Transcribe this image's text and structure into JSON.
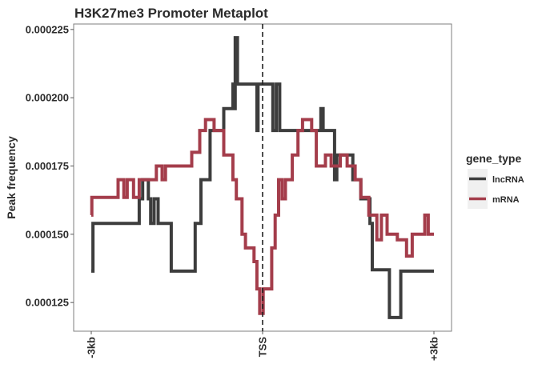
{
  "chart_data": {
    "type": "line",
    "title": "H3K27me3 Promoter Metaplot",
    "xlabel": "",
    "ylabel": "Peak frequency",
    "x_ticks": [
      "-3kb",
      "TSS",
      "+3kb"
    ],
    "x_range": [
      -3000,
      3000
    ],
    "y_ticks": [
      "0.000125",
      "0.000150",
      "0.000175",
      "0.000200",
      "0.000225"
    ],
    "ylim": [
      0.0001145,
      0.000227
    ],
    "grid": false,
    "vline": {
      "x": 0,
      "style": "dashed"
    },
    "legend": {
      "title": "gene_type",
      "position": "right"
    },
    "series": [
      {
        "name": "lncRNA",
        "color": "#3d3d3d",
        "step": [
          [
            -3000,
            0.0001365
          ],
          [
            -2970,
            0.000154
          ],
          [
            -2240,
            0.000154
          ],
          [
            -2160,
            0.000163
          ],
          [
            -2100,
            0.00017
          ],
          [
            -2000,
            0.000163
          ],
          [
            -1960,
            0.000154
          ],
          [
            -1900,
            0.000163
          ],
          [
            -1830,
            0.000154
          ],
          [
            -1600,
            0.0001365
          ],
          [
            -1180,
            0.000154
          ],
          [
            -1080,
            0.00017
          ],
          [
            -920,
            0.000188
          ],
          [
            -680,
            0.000196
          ],
          [
            -520,
            0.000205
          ],
          [
            -500,
            0.000196
          ],
          [
            -480,
            0.000222
          ],
          [
            -440,
            0.000205
          ],
          [
            -100,
            0.000188
          ],
          [
            -80,
            0.000205
          ],
          [
            180,
            0.000188
          ],
          [
            240,
            0.000205
          ],
          [
            300,
            0.000188
          ],
          [
            1020,
            0.000196
          ],
          [
            1060,
            0.000188
          ],
          [
            1260,
            0.00017
          ],
          [
            1300,
            0.000179
          ],
          [
            1580,
            0.00017
          ],
          [
            1720,
            0.000163
          ],
          [
            1880,
            0.000154
          ],
          [
            1920,
            0.000137
          ],
          [
            2220,
            0.0001195
          ],
          [
            2420,
            0.0001365
          ],
          [
            3000,
            0.0001365
          ]
        ]
      },
      {
        "name": "mRNA",
        "color": "#a43d4b",
        "step": [
          [
            -3000,
            0.000157
          ],
          [
            -2990,
            0.0001635
          ],
          [
            -2530,
            0.00017
          ],
          [
            -2430,
            0.0001635
          ],
          [
            -2370,
            0.00017
          ],
          [
            -2260,
            0.0001635
          ],
          [
            -2160,
            0.00017
          ],
          [
            -1860,
            0.000175
          ],
          [
            -1760,
            0.00017
          ],
          [
            -1700,
            0.000175
          ],
          [
            -1240,
            0.00018
          ],
          [
            -1100,
            0.000188
          ],
          [
            -1000,
            0.000192
          ],
          [
            -850,
            0.000188
          ],
          [
            -680,
            0.000179
          ],
          [
            -520,
            0.00017
          ],
          [
            -460,
            0.000163
          ],
          [
            -360,
            0.00015
          ],
          [
            -300,
            0.000145
          ],
          [
            -150,
            0.00014
          ],
          [
            -100,
            0.00013
          ],
          [
            -50,
            0.000121
          ],
          [
            10,
            0.00013
          ],
          [
            160,
            0.000145
          ],
          [
            220,
            0.000157
          ],
          [
            280,
            0.00017
          ],
          [
            340,
            0.000163
          ],
          [
            400,
            0.00017
          ],
          [
            520,
            0.000179
          ],
          [
            620,
            0.000188
          ],
          [
            700,
            0.000192
          ],
          [
            860,
            0.000188
          ],
          [
            940,
            0.000175
          ],
          [
            1100,
            0.000179
          ],
          [
            1200,
            0.000175
          ],
          [
            1360,
            0.000179
          ],
          [
            1480,
            0.000175
          ],
          [
            1620,
            0.00017
          ],
          [
            1720,
            0.0001635
          ],
          [
            1860,
            0.000157
          ],
          [
            2000,
            0.000148
          ],
          [
            2080,
            0.000157
          ],
          [
            2180,
            0.00015
          ],
          [
            2360,
            0.000148
          ],
          [
            2520,
            0.000142
          ],
          [
            2620,
            0.00015
          ],
          [
            2840,
            0.000157
          ],
          [
            2900,
            0.00015
          ],
          [
            3000,
            0.00015
          ]
        ]
      }
    ]
  }
}
